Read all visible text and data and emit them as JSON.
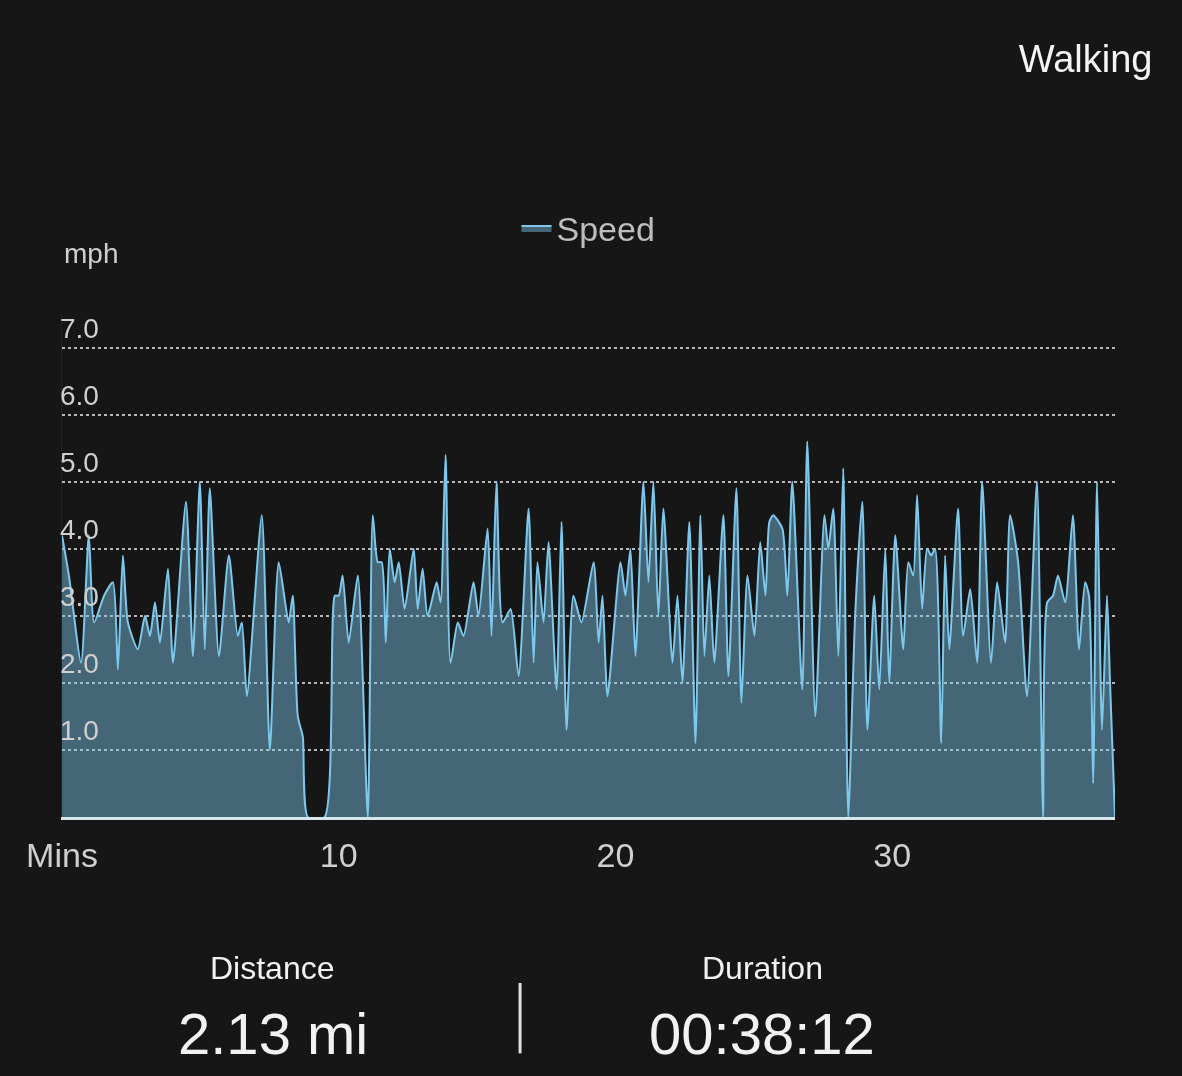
{
  "chart_data": {
    "type": "area",
    "title": "Walking",
    "ylabel": "mph",
    "legend": "top",
    "grid": "y",
    "line_style": "solid",
    "xlim": [
      0,
      38.05
    ],
    "xticks": [
      {
        "value": 0,
        "label": "Mins"
      },
      10,
      20,
      30
    ],
    "ylim": [
      0,
      7.5
    ],
    "yticks": [
      {
        "value": 1,
        "label": "1.0"
      },
      {
        "value": 2,
        "label": "2.0"
      },
      {
        "value": 3,
        "label": "3.0"
      },
      {
        "value": 4,
        "label": "4.0"
      },
      {
        "value": 5,
        "label": "5.0"
      },
      {
        "value": 6,
        "label": "6.0"
      },
      {
        "value": 7,
        "label": "7.0"
      }
    ],
    "annotations": [
      "Distance",
      "2.13 mi",
      "Duration",
      "00:38:12"
    ],
    "series": [
      {
        "name": "Speed",
        "color": "#7ec8ec",
        "x": [
          0,
          0.25,
          0.69,
          0.97,
          1.16,
          1.52,
          1.84,
          2.02,
          2.2,
          2.38,
          2.74,
          3.0,
          3.18,
          3.36,
          3.54,
          3.83,
          4.01,
          4.48,
          4.73,
          4.98,
          5.16,
          5.34,
          5.67,
          6.03,
          6.35,
          6.5,
          6.68,
          7.22,
          7.51,
          7.83,
          8.19,
          8.34,
          8.52,
          8.7,
          8.88,
          9.49,
          9.86,
          10.0,
          10.14,
          10.36,
          10.69,
          11.05,
          11.23,
          11.41,
          11.55,
          11.7,
          11.84,
          12.02,
          12.17,
          12.38,
          12.71,
          12.85,
          13.03,
          13.21,
          13.54,
          13.68,
          13.86,
          14.04,
          14.3,
          14.51,
          14.87,
          15.05,
          15.38,
          15.52,
          15.7,
          15.92,
          16.21,
          16.5,
          16.86,
          17.04,
          17.18,
          17.4,
          17.58,
          17.87,
          18.05,
          18.23,
          18.48,
          18.77,
          19.21,
          19.39,
          19.53,
          19.71,
          20.18,
          20.36,
          20.54,
          20.72,
          21.01,
          21.19,
          21.37,
          21.55,
          21.73,
          22.06,
          22.24,
          22.42,
          22.67,
          22.89,
          23.07,
          23.21,
          23.39,
          23.57,
          23.9,
          24.08,
          24.37,
          24.55,
          24.77,
          25.02,
          25.23,
          25.42,
          25.56,
          25.7,
          26.03,
          26.21,
          26.39,
          26.75,
          26.93,
          27.22,
          27.55,
          27.69,
          27.87,
          28.05,
          28.23,
          28.41,
          28.66,
          28.92,
          29.1,
          29.35,
          29.53,
          29.75,
          29.89,
          30.11,
          30.4,
          30.58,
          30.76,
          30.9,
          31.08,
          31.26,
          31.41,
          31.55,
          31.77,
          31.91,
          32.06,
          32.38,
          32.56,
          32.82,
          33.07,
          33.25,
          33.57,
          33.79,
          34.08,
          34.26,
          34.55,
          34.87,
          35.23,
          35.45,
          35.6,
          35.81,
          35.99,
          36.25,
          36.53,
          36.75,
          36.97,
          37.11,
          37.26,
          37.4,
          37.58,
          37.76,
          37.87,
          38.05
        ],
        "values": [
          4.2,
          3.6,
          2.3,
          4.2,
          2.9,
          3.3,
          3.5,
          2.2,
          3.9,
          2.9,
          2.5,
          3.0,
          2.7,
          3.2,
          2.6,
          3.7,
          2.3,
          4.7,
          2.4,
          5.0,
          2.5,
          4.9,
          2.4,
          3.9,
          2.7,
          2.9,
          1.8,
          4.5,
          1.0,
          3.8,
          2.9,
          3.3,
          1.5,
          1.2,
          0,
          0,
          3.3,
          3.3,
          3.6,
          2.6,
          3.6,
          0,
          4.5,
          3.8,
          3.8,
          2.6,
          4.0,
          3.5,
          3.8,
          3.1,
          4.0,
          3.1,
          3.7,
          3.0,
          3.5,
          3.2,
          5.4,
          2.3,
          2.9,
          2.7,
          3.5,
          3.0,
          4.3,
          2.7,
          5.0,
          2.9,
          3.1,
          2.1,
          4.6,
          2.3,
          3.8,
          2.9,
          4.1,
          1.9,
          4.4,
          1.3,
          3.3,
          2.9,
          3.8,
          2.6,
          3.3,
          1.8,
          3.8,
          3.3,
          4.0,
          2.4,
          5.0,
          3.5,
          5.0,
          3.0,
          4.6,
          2.3,
          3.3,
          2.0,
          4.4,
          1.1,
          4.5,
          2.4,
          3.6,
          2.3,
          4.5,
          2.1,
          4.9,
          1.7,
          3.6,
          2.7,
          4.1,
          3.3,
          4.4,
          4.5,
          4.3,
          3.3,
          5.0,
          1.9,
          5.6,
          1.5,
          4.5,
          4.0,
          4.6,
          2.4,
          5.2,
          0,
          3.0,
          4.7,
          1.3,
          3.3,
          1.9,
          4.0,
          2.0,
          4.2,
          2.5,
          3.8,
          3.6,
          4.8,
          3.1,
          4.0,
          3.9,
          4.0,
          1.1,
          3.9,
          2.5,
          4.6,
          2.7,
          3.4,
          2.3,
          5.0,
          2.3,
          3.5,
          2.6,
          4.5,
          3.8,
          1.8,
          5.0,
          0,
          3.2,
          3.3,
          3.6,
          3.2,
          4.5,
          2.5,
          3.5,
          3.3,
          0.5,
          5.0,
          1.3,
          3.3,
          2.0,
          0
        ]
      }
    ]
  }
}
